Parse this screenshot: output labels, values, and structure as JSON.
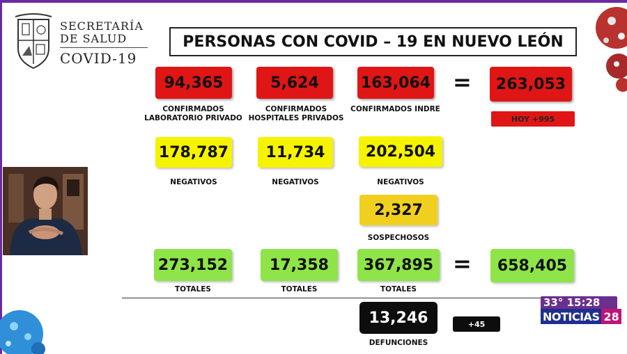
{
  "header": {
    "org_line1": "SECRETARÍA",
    "org_line2": "DE SALUD",
    "org_line3": "COVID-19",
    "title": "PERSONAS CON COVID – 19 EN NUEVO LEÓN"
  },
  "confirmed": {
    "lab_privado": {
      "value": "94,365",
      "label": "CONFIRMADOS\nLABORATORIO PRIVADO"
    },
    "hosp_privados": {
      "value": "5,624",
      "label": "CONFIRMADOS\nHOSPITALES PRIVADOS"
    },
    "indre": {
      "value": "163,064",
      "label": "CONFIRMADOS INDRE"
    },
    "equals": "=",
    "total": {
      "value": "263,053"
    },
    "today": "HOY +995"
  },
  "negatives": {
    "lab_privado": {
      "value": "178,787",
      "label": "NEGATIVOS"
    },
    "hosp_privados": {
      "value": "11,734",
      "label": "NEGATIVOS"
    },
    "indre": {
      "value": "202,504",
      "label": "NEGATIVOS"
    }
  },
  "suspects": {
    "value": "2,327",
    "label": "SOSPECHOSOS"
  },
  "totals": {
    "lab_privado": {
      "value": "273,152",
      "label": "TOTALES"
    },
    "hosp_privados": {
      "value": "17,358",
      "label": "TOTALES"
    },
    "indre": {
      "value": "367,895",
      "label": "TOTALES"
    },
    "equals": "=",
    "grand_total": {
      "value": "658,405"
    }
  },
  "deaths": {
    "value": "13,246",
    "label": "DEFUNCIONES",
    "today": "+45"
  },
  "tv_overlay": {
    "weather_time": "33° 15:28",
    "brand": "NOTICIAS",
    "channel": "28"
  },
  "colors": {
    "red": "#e01515",
    "yellow": "#f6f300",
    "gold": "#f1cf1f",
    "green": "#8ee448",
    "black": "#0d0d0d",
    "frame": "#6a2aa0"
  }
}
